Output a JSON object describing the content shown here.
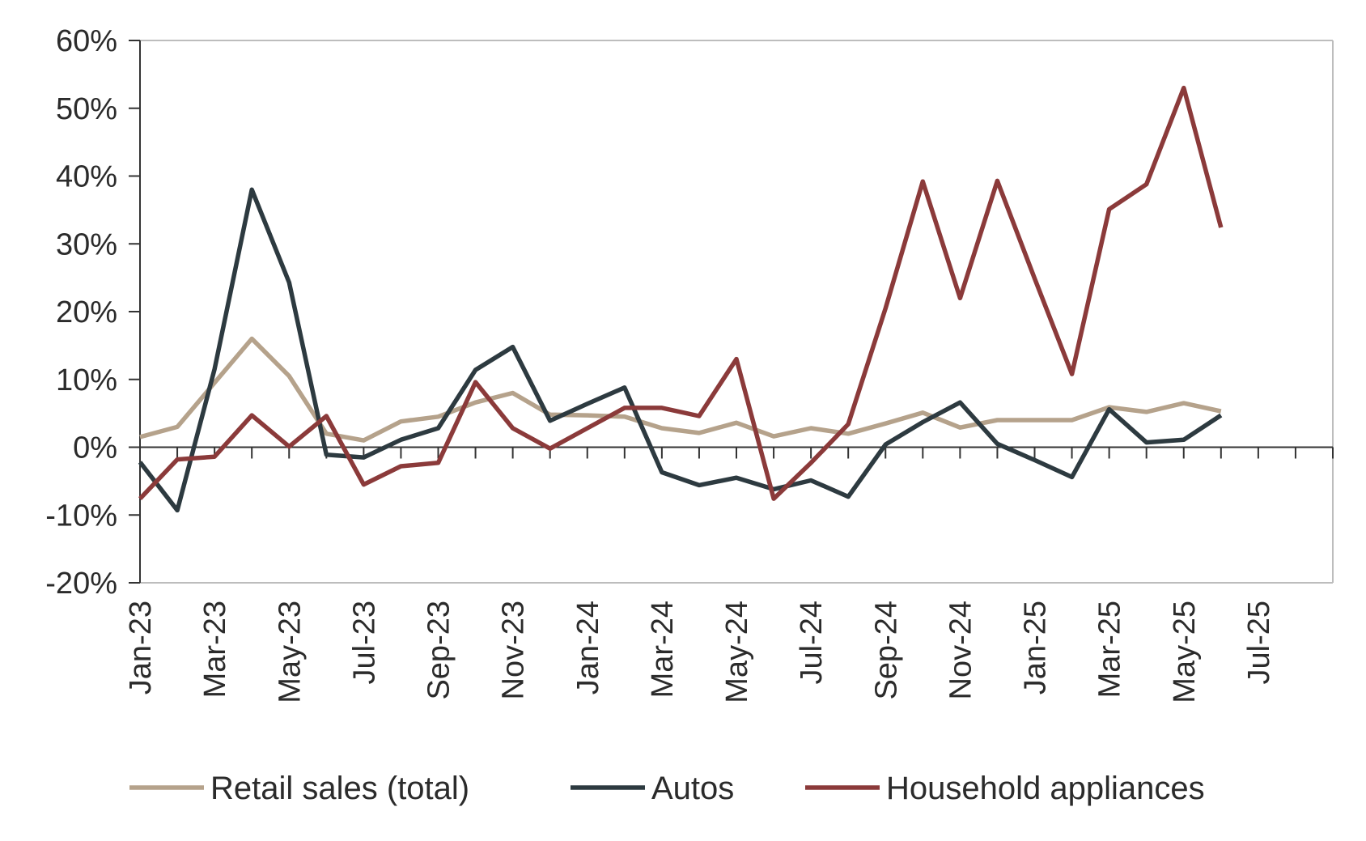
{
  "chart_data": {
    "type": "line",
    "title": "",
    "xlabel": "",
    "ylabel": "",
    "x": [
      "Jan-23",
      "Feb-23",
      "Mar-23",
      "Apr-23",
      "May-23",
      "Jun-23",
      "Jul-23",
      "Aug-23",
      "Sep-23",
      "Oct-23",
      "Nov-23",
      "Dec-23",
      "Jan-24",
      "Feb-24",
      "Mar-24",
      "Apr-24",
      "May-24",
      "Jun-24",
      "Jul-24",
      "Aug-24",
      "Sep-24",
      "Oct-24",
      "Nov-24",
      "Dec-24",
      "Jan-25",
      "Feb-25",
      "Mar-25",
      "Apr-25",
      "May-25",
      "Jun-25"
    ],
    "x_tick_labels": [
      "Jan-23",
      "Mar-23",
      "May-23",
      "Jul-23",
      "Sep-23",
      "Nov-23",
      "Jan-24",
      "Mar-24",
      "May-24",
      "Jul-24",
      "Sep-24",
      "Nov-24",
      "Jan-25",
      "Mar-25",
      "May-25",
      "Jul-25"
    ],
    "y_tick_labels": [
      "60%",
      "50%",
      "40%",
      "30%",
      "20%",
      "10%",
      "0%",
      "-10%",
      "-20%"
    ],
    "ylim": [
      -20,
      60
    ],
    "y_unit": "%",
    "grid": false,
    "legend_position": "bottom",
    "series": [
      {
        "name": "Retail sales (total)",
        "color": "#b5a28b",
        "values": [
          1.5,
          3.0,
          9.5,
          16.0,
          10.5,
          2.0,
          1.0,
          3.8,
          4.5,
          6.6,
          8.0,
          4.8,
          4.7,
          4.5,
          2.8,
          2.1,
          3.6,
          1.6,
          2.8,
          2.0,
          3.5,
          5.1,
          2.9,
          4.0,
          4.0,
          4.0,
          5.9,
          5.2,
          6.5,
          5.3
        ]
      },
      {
        "name": "Autos",
        "color": "#2d3a40",
        "values": [
          -2.2,
          -9.3,
          11.5,
          38.0,
          24.3,
          -1.1,
          -1.5,
          1.1,
          2.8,
          11.4,
          14.8,
          3.9,
          6.4,
          8.8,
          -3.7,
          -5.6,
          -4.5,
          -6.2,
          -4.9,
          -7.3,
          0.4,
          3.7,
          6.6,
          0.5,
          -1.9,
          -4.4,
          5.6,
          0.7,
          1.1,
          4.7
        ]
      },
      {
        "name": "Household appliances",
        "color": "#8b3a3a",
        "values": [
          -7.6,
          -1.8,
          -1.4,
          4.7,
          0.1,
          4.6,
          -5.5,
          -2.8,
          -2.3,
          9.6,
          2.8,
          -0.2,
          2.8,
          5.8,
          5.8,
          4.6,
          13.0,
          -7.6,
          -2.3,
          3.4,
          20.5,
          39.2,
          22.0,
          39.3,
          24.9,
          10.8,
          35.1,
          38.8,
          53.0,
          32.4
        ]
      }
    ]
  }
}
